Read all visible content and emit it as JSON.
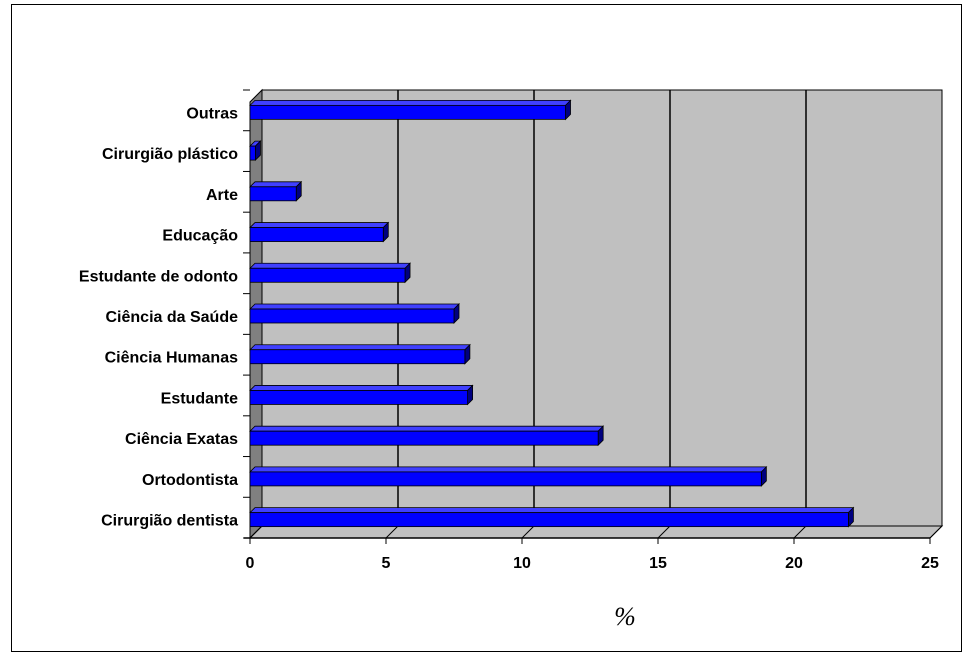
{
  "chart_data": {
    "type": "bar",
    "orientation": "horizontal",
    "categories": [
      "Cirurgião dentista",
      "Ortodontista",
      "Ciência Exatas",
      "Estudante",
      "Ciência Humanas",
      "Ciência da Saúde",
      "Estudante de odonto",
      "Educação",
      "Arte",
      "Cirurgião plástico",
      "Outras"
    ],
    "values": [
      22,
      18.8,
      12.8,
      8,
      7.9,
      7.5,
      5.7,
      4.9,
      1.7,
      0.2,
      11.6
    ],
    "xlabel": "%",
    "xlim": [
      0,
      25
    ],
    "xticks": [
      "0",
      "5",
      "10",
      "15",
      "20",
      "25"
    ],
    "grid": "vertical",
    "style": "3d",
    "colors": {
      "bar": "#0000ff",
      "bar_shade": "#000080",
      "wall": "#c0c0c0",
      "wall_side": "#808080"
    }
  }
}
